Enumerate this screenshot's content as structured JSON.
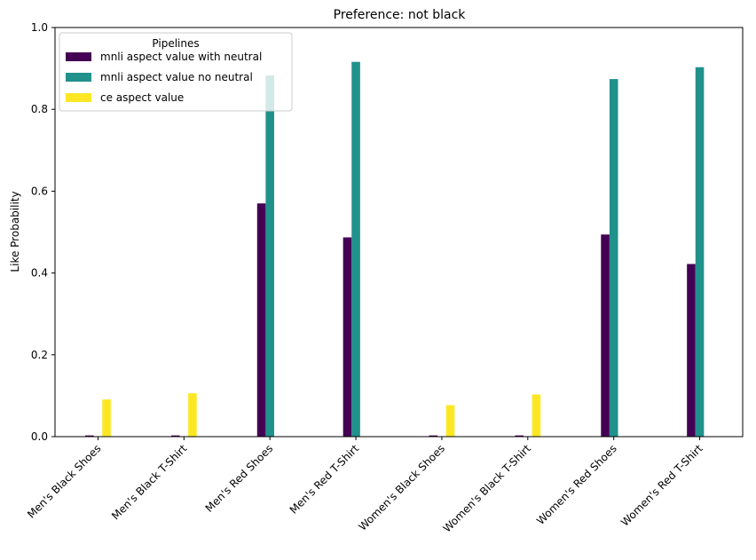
{
  "chart_data": {
    "type": "bar",
    "title": "Preference: not black",
    "xlabel": "",
    "ylabel": "Like Probability",
    "ylim": [
      0,
      1.0
    ],
    "yticks": [
      "0.0",
      "0.2",
      "0.4",
      "0.6",
      "0.8",
      "1.0"
    ],
    "grid": false,
    "legend": {
      "title": "Pipelines",
      "placement": "top-left"
    },
    "categories": [
      "Men's Black Shoes",
      "Men's Black T-Shirt",
      "Men's Red Shoes",
      "Men's Red T-Shirt",
      "Women's Black Shoes",
      "Women's Black T-Shirt",
      "Women's Red Shoes",
      "Women's Red T-Shirt"
    ],
    "series": [
      {
        "name": "mnli aspect value with neutral",
        "color": "#440154",
        "values": [
          0.003,
          0.003,
          0.57,
          0.487,
          0.003,
          0.003,
          0.494,
          0.422
        ]
      },
      {
        "name": "mnli aspect value no neutral",
        "color": "#21918c",
        "values": [
          0.0,
          0.0,
          0.883,
          0.916,
          0.0,
          0.0,
          0.874,
          0.903
        ]
      },
      {
        "name": "ce aspect value",
        "color": "#fde725",
        "values": [
          0.091,
          0.106,
          0.0,
          0.0,
          0.077,
          0.103,
          0.0,
          0.0
        ]
      }
    ]
  }
}
